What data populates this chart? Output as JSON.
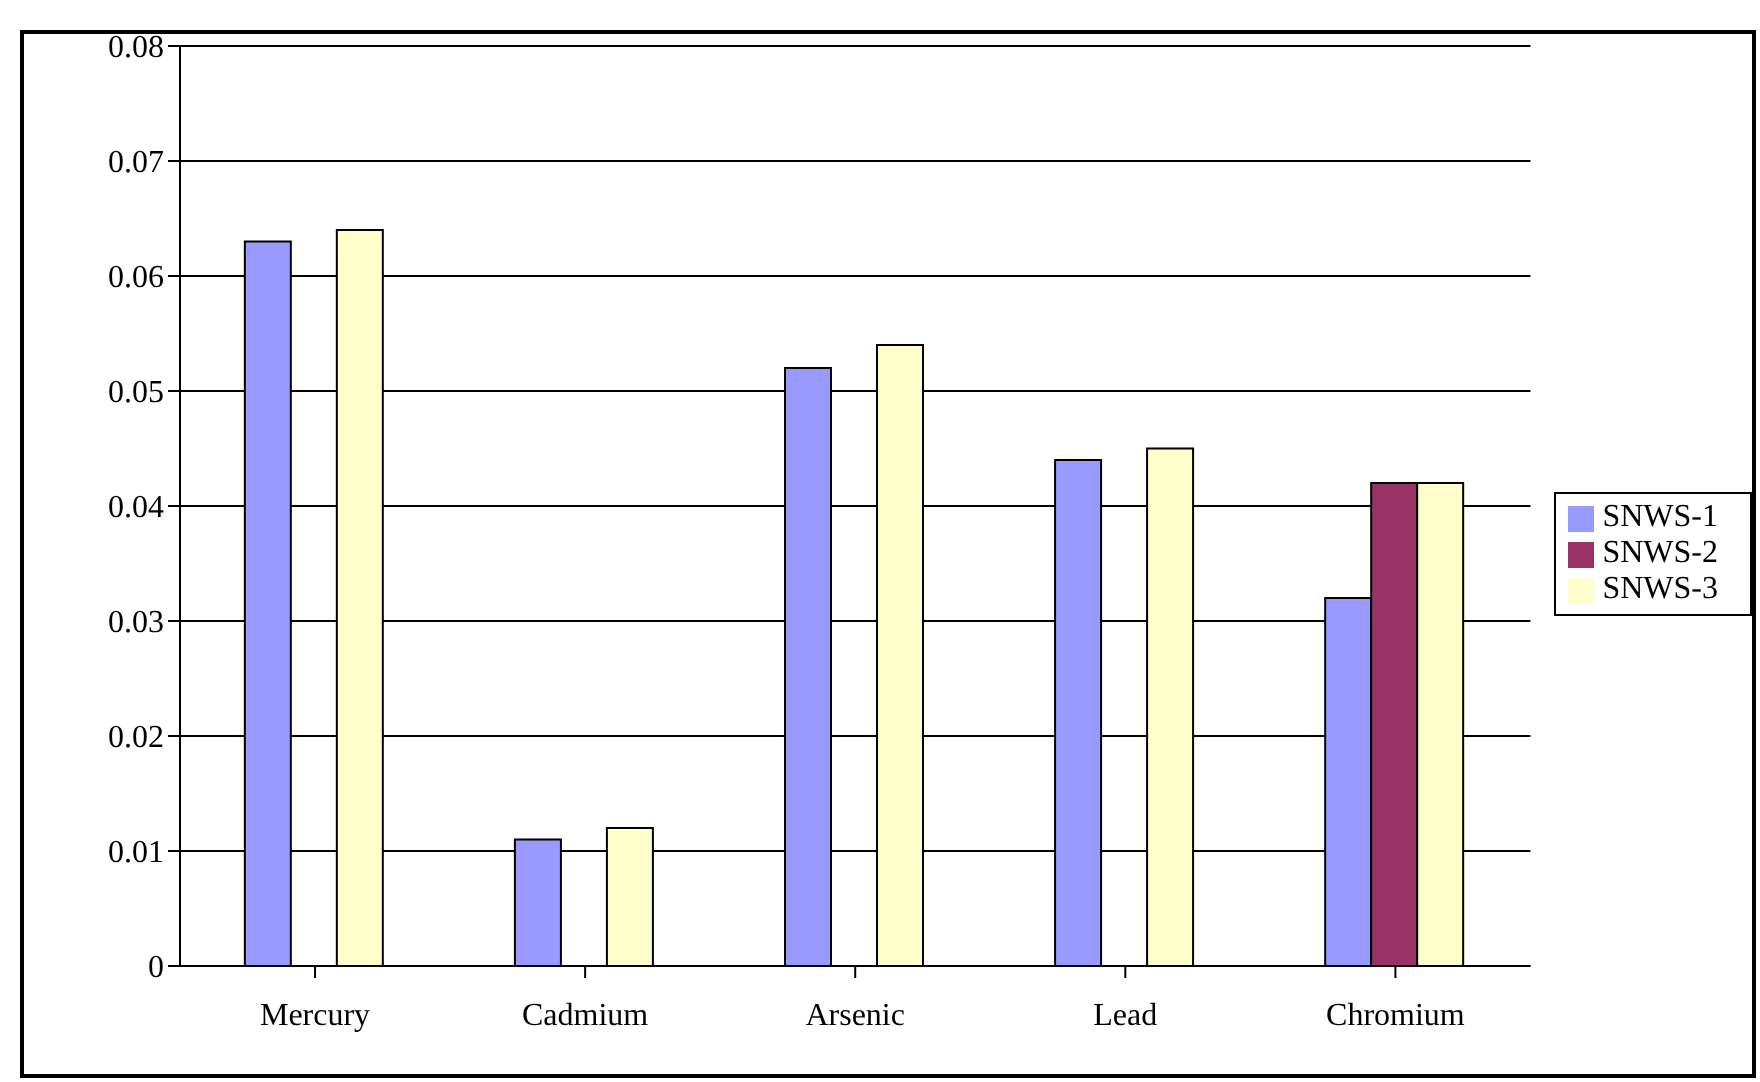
{
  "chart_data": {
    "type": "bar",
    "categories": [
      "Mercury",
      "Cadmium",
      "Arsenic",
      "Lead",
      "Chromium"
    ],
    "series": [
      {
        "name": "SNWS-1",
        "color": "#9999ff",
        "values": [
          0.063,
          0.011,
          0.052,
          0.044,
          0.032
        ]
      },
      {
        "name": "SNWS-2",
        "color": "#993366",
        "values": [
          null,
          null,
          null,
          null,
          0.042
        ]
      },
      {
        "name": "SNWS-3",
        "color": "#ffffcc",
        "values": [
          0.064,
          0.012,
          0.054,
          0.045,
          0.042
        ]
      }
    ],
    "ylim": [
      0,
      0.08
    ],
    "yticks": [
      0,
      0.01,
      0.02,
      0.03,
      0.04,
      0.05,
      0.06,
      0.07,
      0.08
    ],
    "grid": "y",
    "legend": "right"
  }
}
